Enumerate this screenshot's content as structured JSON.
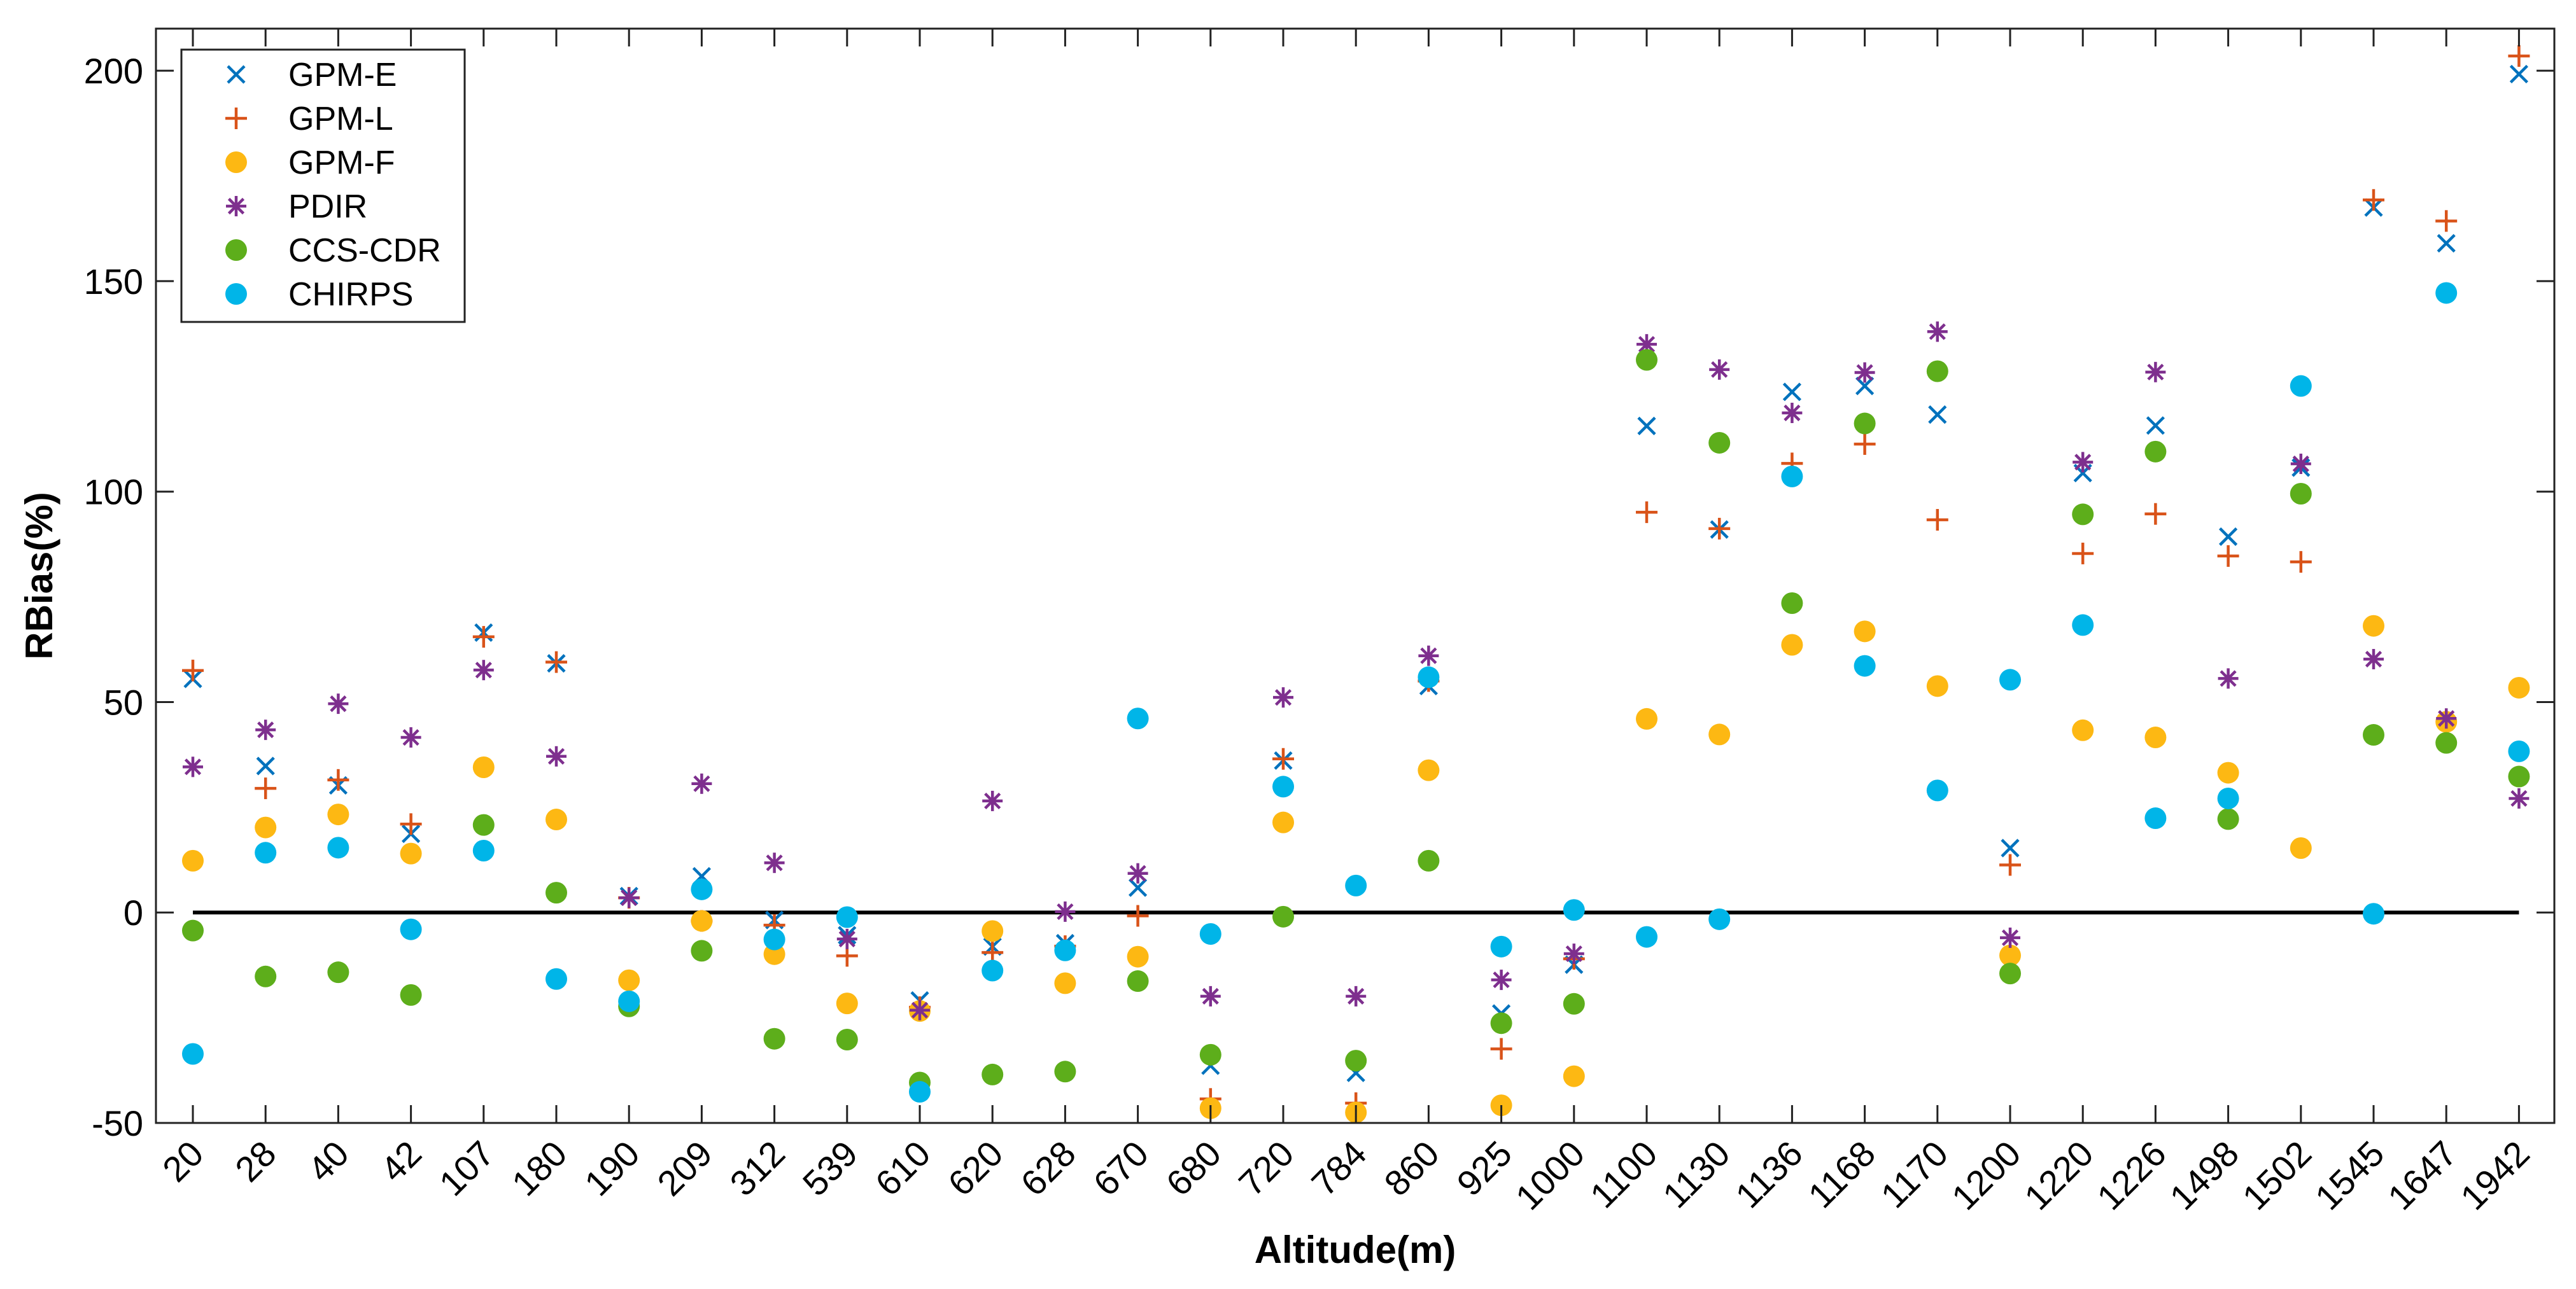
{
  "chart_data": {
    "type": "scatter",
    "xlabel": "Altitude(m)",
    "ylabel": "RBias(%)",
    "ylim": [
      -50,
      210
    ],
    "yticks": [
      -50,
      0,
      50,
      100,
      150,
      200
    ],
    "grid": false,
    "legend_position": "top-left",
    "reference_line": 0,
    "categories": [
      "20",
      "28",
      "40",
      "42",
      "107",
      "180",
      "190",
      "209",
      "312",
      "539",
      "610",
      "620",
      "628",
      "670",
      "680",
      "720",
      "784",
      "860",
      "925",
      "1000",
      "1100",
      "1130",
      "1136",
      "1168",
      "1170",
      "1200",
      "1220",
      "1226",
      "1498",
      "1502",
      "1545",
      "1647",
      "1942"
    ],
    "series": [
      {
        "name": "GPM-E",
        "marker": "x",
        "color": "#0072BD",
        "values": [
          55.5,
          34.8,
          30.2,
          18.7,
          66.5,
          59.2,
          3.9,
          8.6,
          -1.8,
          -5.4,
          -20.9,
          -8.1,
          -7.3,
          5.9,
          -36.4,
          36.1,
          -38.1,
          53.8,
          -24.0,
          -12.4,
          115.6,
          91.0,
          123.7,
          125.1,
          118.3,
          15.3,
          104.4,
          115.7,
          89.3,
          105.7,
          167.5,
          159.0,
          199.2
        ]
      },
      {
        "name": "GPM-L",
        "marker": "+",
        "color": "#D95319",
        "values": [
          57.5,
          29.5,
          31.5,
          21.0,
          65.5,
          59.5,
          3.5,
          -2.0,
          -3.0,
          -10.3,
          -22.5,
          -9.5,
          -8.0,
          -0.8,
          -44.3,
          36.5,
          -45.3,
          55.0,
          -32.4,
          -11.0,
          95.1,
          91.2,
          106.7,
          111.3,
          93.3,
          11.3,
          85.3,
          94.7,
          84.7,
          83.3,
          169.3,
          164.3,
          203.5
        ]
      },
      {
        "name": "GPM-F",
        "marker": "dot",
        "color": "#FDB813",
        "values": [
          12.3,
          20.2,
          23.3,
          14.0,
          34.5,
          22.1,
          -16.1,
          -2.0,
          -9.9,
          -21.6,
          -23.4,
          -4.4,
          -16.8,
          -10.5,
          -46.5,
          21.4,
          -47.5,
          33.8,
          -45.8,
          -38.9,
          46.0,
          42.3,
          63.6,
          66.8,
          53.8,
          -10.2,
          43.3,
          41.6,
          33.2,
          15.3,
          68.1,
          45.3,
          53.4
        ]
      },
      {
        "name": "PDIR",
        "marker": "asterisk",
        "color": "#7E2F8E",
        "values": [
          34.6,
          43.4,
          49.6,
          41.6,
          57.6,
          37.1,
          3.5,
          30.6,
          11.8,
          -6.3,
          -23.2,
          26.5,
          0.2,
          9.3,
          -19.9,
          51.1,
          -19.9,
          61.0,
          -16.0,
          -9.8,
          135.0,
          129.0,
          118.7,
          128.3,
          138.0,
          -6.0,
          107.0,
          128.4,
          55.6,
          106.6,
          60.2,
          46.1,
          27.1
        ]
      },
      {
        "name": "CCS-CDR",
        "marker": "dot",
        "color": "#5DAE1B",
        "values": [
          -4.3,
          -15.2,
          -14.2,
          -19.6,
          20.8,
          4.7,
          -22.3,
          -9.1,
          -30.0,
          -30.2,
          -40.4,
          -38.5,
          -37.8,
          -16.3,
          -33.8,
          -1.0,
          -35.2,
          12.3,
          -26.3,
          -21.7,
          131.3,
          111.6,
          73.5,
          116.2,
          128.6,
          -14.5,
          94.6,
          109.5,
          22.2,
          99.5,
          42.2,
          40.3,
          32.3
        ]
      },
      {
        "name": "CHIRPS",
        "marker": "dot",
        "color": "#00B5E8",
        "values": [
          -33.6,
          14.2,
          15.4,
          -4.0,
          14.7,
          -15.8,
          -21.1,
          5.5,
          -6.4,
          -1.1,
          -42.6,
          -13.8,
          -9.0,
          46.1,
          -5.1,
          29.9,
          6.4,
          55.9,
          -8.1,
          0.6,
          -5.8,
          -1.6,
          103.6,
          58.6,
          29.0,
          55.3,
          68.3,
          22.4,
          27.1,
          125.1,
          -0.3,
          147.2,
          38.3
        ]
      }
    ]
  }
}
